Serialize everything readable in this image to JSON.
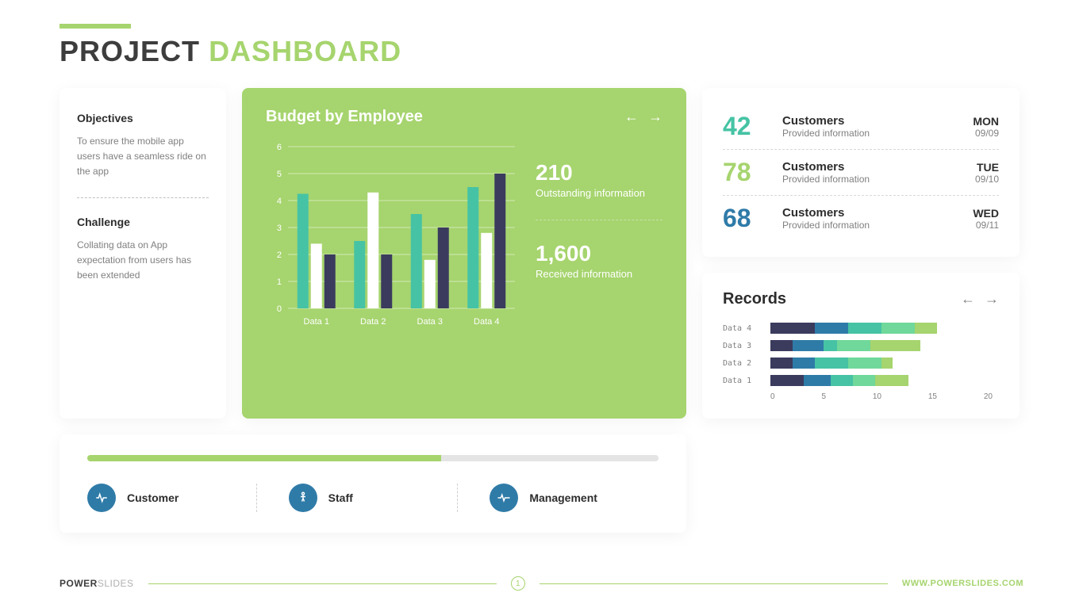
{
  "header": {
    "title_dark": "PROJECT",
    "title_light": "DASHBOARD",
    "accent_color": "#a6d46e"
  },
  "objectives": {
    "title": "Objectives",
    "text": "To ensure the mobile app users have a seamless ride on the app"
  },
  "challenge": {
    "title": "Challenge",
    "text": "Collating data on App expectation from users has been extended"
  },
  "budget_chart": {
    "title": "Budget by Employee",
    "type": "bar",
    "bg_color": "#a6d46e",
    "categories": [
      "Data 1",
      "Data 2",
      "Data 3",
      "Data 4"
    ],
    "series": [
      {
        "name": "teal",
        "color": "#46c3a4",
        "values": [
          4.25,
          2.5,
          3.5,
          4.5
        ]
      },
      {
        "name": "white",
        "color": "#ffffff",
        "values": [
          2.4,
          4.3,
          1.8,
          2.8
        ]
      },
      {
        "name": "navy",
        "color": "#3b3b5e",
        "values": [
          2.0,
          2.0,
          3.0,
          5.0
        ]
      }
    ],
    "y_ticks": [
      0,
      1,
      2,
      3,
      4,
      5,
      6
    ],
    "ylim": [
      0,
      6
    ],
    "grid_color": "rgba(255,255,255,0.5)",
    "axis_font_color": "#ffffff",
    "stats": [
      {
        "value": "210",
        "label": "Outstanding information"
      },
      {
        "value": "1,600",
        "label": "Received information"
      }
    ]
  },
  "customers": [
    {
      "num": "42",
      "color": "c-teal",
      "title": "Customers",
      "sub": "Provided information",
      "day": "MON",
      "date": "09/09"
    },
    {
      "num": "78",
      "color": "c-green",
      "title": "Customers",
      "sub": "Provided information",
      "day": "TUE",
      "date": "09/10"
    },
    {
      "num": "68",
      "color": "c-blue",
      "title": "Customers",
      "sub": "Provided information",
      "day": "WED",
      "date": "09/11"
    }
  ],
  "records": {
    "title": "Records",
    "type": "stacked-bar-horizontal",
    "max": 20,
    "x_ticks": [
      0,
      5,
      10,
      15,
      20
    ],
    "segment_colors": [
      "#3b3b5e",
      "#2f7ba8",
      "#46c3a4",
      "#6fd89a",
      "#a6d46e"
    ],
    "rows": [
      {
        "label": "Data 4",
        "segments": [
          4.0,
          3.0,
          3.0,
          3.0,
          2.0
        ]
      },
      {
        "label": "Data 3",
        "segments": [
          2.0,
          2.8,
          1.2,
          3.0,
          4.5
        ]
      },
      {
        "label": "Data 2",
        "segments": [
          2.0,
          2.0,
          3.0,
          3.0,
          1.0
        ]
      },
      {
        "label": "Data 1",
        "segments": [
          3.0,
          2.4,
          2.0,
          2.0,
          3.0
        ]
      }
    ]
  },
  "progress": {
    "percent": 62,
    "track_color": "#e4e4e4",
    "fill_color": "#a6d46e",
    "items": [
      {
        "label": "Customer",
        "icon": "heartbeat"
      },
      {
        "label": "Staff",
        "icon": "accessibility"
      },
      {
        "label": "Management",
        "icon": "pulse"
      }
    ],
    "icon_bg": "#2f7ba8"
  },
  "footer": {
    "brand_bold": "POWER",
    "brand_light": "SLIDES",
    "page": "1",
    "url": "WWW.POWERSLIDES.COM"
  }
}
